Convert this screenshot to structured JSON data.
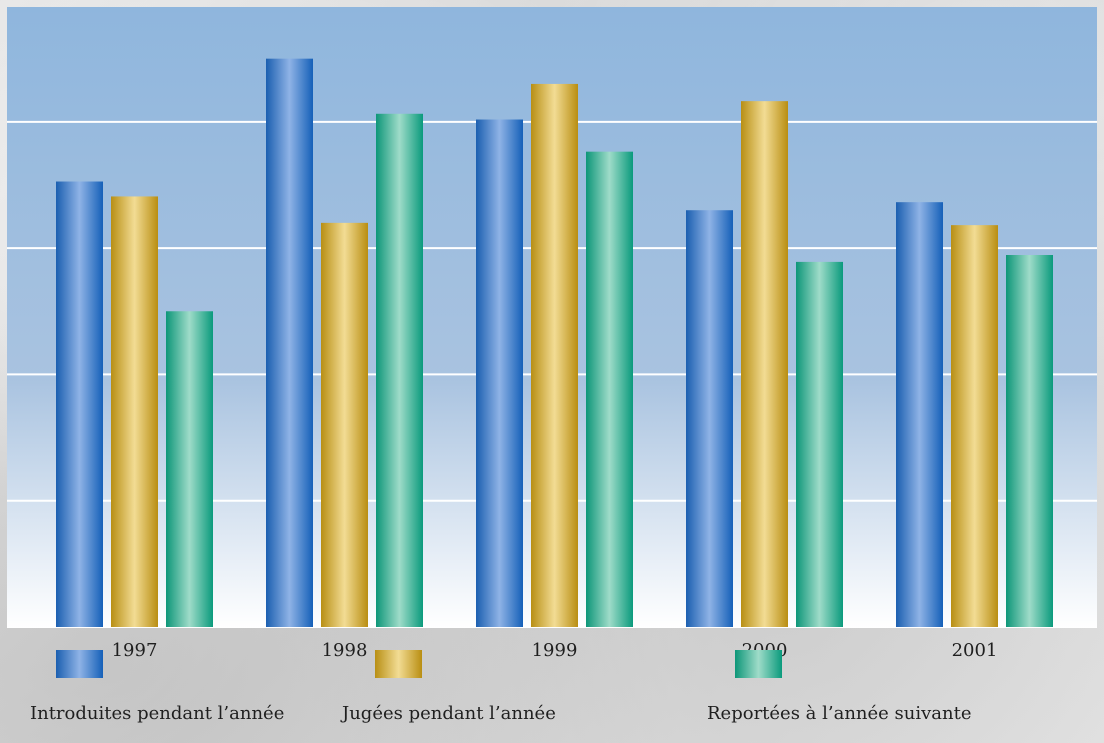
{
  "chart_data": {
    "type": "bar",
    "categories": [
      "1997",
      "1998",
      "1999",
      "2000",
      "2001"
    ],
    "series": [
      {
        "name": "Introduites pendant l’année",
        "values": [
          388,
          495,
          442,
          363,
          370
        ],
        "color": "#1b63b5"
      },
      {
        "name": "Jugées pendant l’année",
        "values": [
          375,
          352,
          473,
          458,
          350
        ],
        "color": "#c9a23a"
      },
      {
        "name": "Reportées à l’année suivante",
        "values": [
          275,
          447,
          414,
          318,
          324
        ],
        "color": "#14a083"
      }
    ],
    "ylim": [
      0,
      540
    ],
    "gridlines": [
      110,
      220,
      330,
      440
    ],
    "grid": true,
    "legend_position": "bottom",
    "background": [
      "#8fb6dd",
      "#ffffff"
    ]
  }
}
